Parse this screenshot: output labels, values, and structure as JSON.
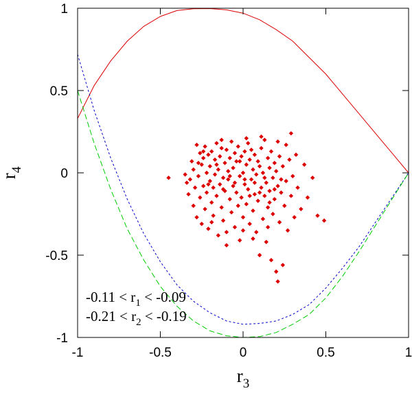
{
  "chart_data": {
    "type": "scatter",
    "title": "",
    "xlabel": {
      "main": "r",
      "sub": "3"
    },
    "ylabel": {
      "main": "r",
      "sub": "4"
    },
    "xlim": [
      -1,
      1
    ],
    "ylim": [
      -1,
      1
    ],
    "xticks": [
      {
        "value": -1,
        "label": "-1"
      },
      {
        "value": -0.5,
        "label": "-0.5"
      },
      {
        "value": 0,
        "label": "0"
      },
      {
        "value": 0.5,
        "label": "0.5"
      },
      {
        "value": 1,
        "label": "1"
      }
    ],
    "yticks": [
      {
        "value": -1,
        "label": "-1"
      },
      {
        "value": -0.5,
        "label": "-0.5"
      },
      {
        "value": 0,
        "label": "0"
      },
      {
        "value": 0.5,
        "label": "0.5"
      },
      {
        "value": 1,
        "label": "1"
      }
    ],
    "grid": false,
    "annotations": [
      {
        "parts": [
          "-0.11 < r",
          "1",
          " < -0.09"
        ]
      },
      {
        "parts": [
          "-0.21 < r",
          "2",
          " < -0.19"
        ]
      }
    ],
    "series": [
      {
        "type": "line",
        "color": "#dd0000",
        "style": "solid",
        "x": [
          -1,
          -0.9,
          -0.8,
          -0.7,
          -0.6,
          -0.5,
          -0.4,
          -0.3,
          -0.2,
          -0.1,
          0,
          0.1,
          0.2,
          0.3,
          0.4,
          0.5,
          0.6,
          0.7,
          0.8,
          0.9,
          1
        ],
        "y": [
          0.33,
          0.53,
          0.68,
          0.8,
          0.89,
          0.95,
          0.986,
          0.997,
          0.998,
          0.99,
          0.97,
          0.93,
          0.87,
          0.8,
          0.7,
          0.6,
          0.48,
          0.36,
          0.24,
          0.12,
          0
        ]
      },
      {
        "type": "line",
        "color": "#0000cc",
        "style": "dotted",
        "x": [
          -1,
          -0.9,
          -0.8,
          -0.7,
          -0.6,
          -0.5,
          -0.4,
          -0.3,
          -0.2,
          -0.1,
          0,
          0.1,
          0.2,
          0.3,
          0.4,
          0.5,
          0.6,
          0.7,
          0.8,
          0.9,
          1
        ],
        "y": [
          0.72,
          0.38,
          0.09,
          -0.16,
          -0.37,
          -0.54,
          -0.68,
          -0.78,
          -0.85,
          -0.9,
          -0.92,
          -0.915,
          -0.9,
          -0.86,
          -0.8,
          -0.7,
          -0.58,
          -0.45,
          -0.3,
          -0.15,
          0
        ]
      },
      {
        "type": "line",
        "color": "#00cc00",
        "style": "dashed",
        "x": [
          -1,
          -0.9,
          -0.8,
          -0.7,
          -0.6,
          -0.5,
          -0.4,
          -0.3,
          -0.2,
          -0.1,
          0,
          0.1,
          0.2,
          0.3,
          0.4,
          0.5,
          0.6,
          0.7,
          0.8,
          0.9,
          1
        ],
        "y": [
          0.5,
          0.18,
          -0.1,
          -0.34,
          -0.53,
          -0.69,
          -0.81,
          -0.9,
          -0.96,
          -0.99,
          -1,
          -0.995,
          -0.97,
          -0.92,
          -0.86,
          -0.76,
          -0.63,
          -0.48,
          -0.32,
          -0.16,
          0
        ]
      },
      {
        "type": "scatter",
        "color": "#dd0000",
        "marker": "diamond",
        "points": [
          [
            -0.45,
            -0.03
          ],
          [
            -0.35,
            -0.01
          ],
          [
            -0.34,
            -0.06
          ],
          [
            -0.33,
            -0.13
          ],
          [
            -0.32,
            -0.04
          ],
          [
            -0.31,
            0.07
          ],
          [
            -0.3,
            -0.2
          ],
          [
            -0.3,
            0.02
          ],
          [
            -0.29,
            -0.09
          ],
          [
            -0.28,
            0.17
          ],
          [
            -0.28,
            -0.27
          ],
          [
            -0.27,
            -0.02
          ],
          [
            -0.26,
            0.12
          ],
          [
            -0.26,
            -0.15
          ],
          [
            -0.25,
            0.05
          ],
          [
            -0.25,
            -0.31
          ],
          [
            -0.24,
            -0.08
          ],
          [
            -0.24,
            0.09
          ],
          [
            -0.23,
            -0.22
          ],
          [
            -0.23,
            0.16
          ],
          [
            -0.22,
            0.0
          ],
          [
            -0.22,
            -0.12
          ],
          [
            -0.21,
            0.11
          ],
          [
            -0.21,
            -0.34
          ],
          [
            -0.2,
            -0.05
          ],
          [
            -0.2,
            0.04
          ],
          [
            -0.19,
            -0.18
          ],
          [
            -0.19,
            0.13
          ],
          [
            -0.18,
            -0.09
          ],
          [
            -0.18,
            -0.26
          ],
          [
            -0.17,
            0.08
          ],
          [
            -0.17,
            -0.01
          ],
          [
            -0.16,
            -0.14
          ],
          [
            -0.16,
            0.18
          ],
          [
            -0.15,
            -0.38
          ],
          [
            -0.15,
            0.02
          ],
          [
            -0.14,
            -0.07
          ],
          [
            -0.14,
            0.1
          ],
          [
            -0.13,
            -0.21
          ],
          [
            -0.13,
            0.15
          ],
          [
            -0.12,
            -0.03
          ],
          [
            -0.12,
            -0.29
          ],
          [
            -0.11,
            0.06
          ],
          [
            -0.11,
            -0.11
          ],
          [
            -0.1,
            0.14
          ],
          [
            -0.1,
            -0.44
          ],
          [
            -0.09,
            -0.04
          ],
          [
            -0.09,
            0.01
          ],
          [
            -0.08,
            -0.16
          ],
          [
            -0.08,
            0.09
          ],
          [
            -0.07,
            -0.24
          ],
          [
            -0.07,
            0.19
          ],
          [
            -0.06,
            -0.08
          ],
          [
            -0.06,
            0.03
          ],
          [
            -0.05,
            -0.33
          ],
          [
            -0.05,
            0.12
          ],
          [
            -0.04,
            -0.12
          ],
          [
            -0.04,
            0.07
          ],
          [
            -0.03,
            -0.2
          ],
          [
            -0.03,
            0.16
          ],
          [
            -0.02,
            -0.02
          ],
          [
            -0.02,
            -0.41
          ],
          [
            -0.01,
            0.1
          ],
          [
            -0.01,
            -0.15
          ],
          [
            0.0,
            0.0
          ],
          [
            0.0,
            -0.27
          ],
          [
            0.01,
            0.13
          ],
          [
            0.01,
            -0.07
          ],
          [
            0.02,
            0.05
          ],
          [
            0.02,
            -0.19
          ],
          [
            0.03,
            0.18
          ],
          [
            0.03,
            -0.1
          ],
          [
            0.04,
            -0.31
          ],
          [
            0.04,
            0.08
          ],
          [
            0.05,
            -0.04
          ],
          [
            0.05,
            0.14
          ],
          [
            0.06,
            -0.23
          ],
          [
            0.06,
            0.02
          ],
          [
            0.07,
            -0.13
          ],
          [
            0.07,
            0.11
          ],
          [
            0.08,
            -0.36
          ],
          [
            0.08,
            -0.01
          ],
          [
            0.09,
            0.07
          ],
          [
            0.09,
            -0.17
          ],
          [
            0.1,
            -0.5
          ],
          [
            0.1,
            0.04
          ],
          [
            0.11,
            -0.09
          ],
          [
            0.11,
            0.15
          ],
          [
            0.12,
            -0.28
          ],
          [
            0.12,
            0.0
          ],
          [
            0.13,
            -0.14
          ],
          [
            0.13,
            0.2
          ],
          [
            0.14,
            -0.06
          ],
          [
            0.14,
            -0.42
          ],
          [
            0.15,
            0.09
          ],
          [
            0.15,
            -0.21
          ],
          [
            0.16,
            0.03
          ],
          [
            0.16,
            -0.11
          ],
          [
            0.17,
            -0.53
          ],
          [
            0.17,
            0.13
          ],
          [
            0.18,
            -0.03
          ],
          [
            0.18,
            -0.25
          ],
          [
            0.19,
            0.06
          ],
          [
            0.19,
            -0.16
          ],
          [
            0.2,
            -0.6
          ],
          [
            0.2,
            0.01
          ],
          [
            0.21,
            -0.08
          ],
          [
            0.21,
            -0.66
          ],
          [
            0.22,
            0.1
          ],
          [
            0.22,
            -0.3
          ],
          [
            0.23,
            -0.12
          ],
          [
            0.24,
            0.04
          ],
          [
            0.24,
            -0.56
          ],
          [
            0.25,
            -0.2
          ],
          [
            0.26,
            0.17
          ],
          [
            0.26,
            -0.05
          ],
          [
            0.27,
            -0.35
          ],
          [
            0.28,
            0.08
          ],
          [
            0.29,
            0.24
          ],
          [
            0.29,
            -0.14
          ],
          [
            0.3,
            -0.02
          ],
          [
            0.31,
            -0.27
          ],
          [
            0.32,
            0.11
          ],
          [
            0.33,
            -0.09
          ],
          [
            0.35,
            -0.22
          ],
          [
            0.37,
            0.05
          ],
          [
            0.39,
            -0.15
          ],
          [
            0.42,
            -0.03
          ],
          [
            0.45,
            -0.26
          ],
          [
            0.49,
            -0.29
          ],
          [
            -0.27,
            0.06
          ],
          [
            -0.21,
            -0.07
          ],
          [
            -0.16,
            0.05
          ],
          [
            -0.12,
            -0.1
          ],
          [
            -0.08,
            -0.02
          ],
          [
            -0.05,
            -0.06
          ],
          [
            -0.02,
            0.07
          ],
          [
            0.01,
            -0.04
          ],
          [
            0.04,
            -0.14
          ],
          [
            0.07,
            -0.06
          ],
          [
            0.1,
            -0.12
          ],
          [
            0.13,
            -0.03
          ],
          [
            0.16,
            -0.18
          ],
          [
            0.19,
            -0.1
          ],
          [
            0.23,
            -0.04
          ],
          [
            -0.19,
            -0.3
          ],
          [
            -0.1,
            -0.36
          ],
          [
            0.0,
            -0.35
          ],
          [
            0.06,
            -0.4
          ],
          [
            0.15,
            -0.33
          ],
          [
            -0.24,
            0.13
          ],
          [
            -0.13,
            0.2
          ],
          [
            0.02,
            0.21
          ],
          [
            0.11,
            0.22
          ],
          [
            0.21,
            0.19
          ]
        ]
      }
    ]
  }
}
